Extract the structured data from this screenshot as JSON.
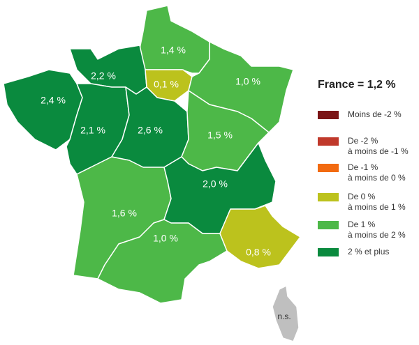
{
  "map": {
    "regions": [
      {
        "label": "1,4 %",
        "color": "#4db848"
      },
      {
        "label": "2,2 %",
        "color": "#0a8a3e"
      },
      {
        "label": "0,1 %",
        "color": "#bcc21d"
      },
      {
        "label": "1,0 %",
        "color": "#4db848"
      },
      {
        "label": "2,4 %",
        "color": "#0a8a3e"
      },
      {
        "label": "2,1 %",
        "color": "#0a8a3e"
      },
      {
        "label": "2,6 %",
        "color": "#0a8a3e"
      },
      {
        "label": "1,5 %",
        "color": "#4db848"
      },
      {
        "label": "1,6 %",
        "color": "#4db848"
      },
      {
        "label": "2,0 %",
        "color": "#0a8a3e"
      },
      {
        "label": "1,0 %",
        "color": "#4db848"
      },
      {
        "label": "0,8 %",
        "color": "#bcc21d"
      },
      {
        "label": "n.s.",
        "color": "#bfbfbf"
      }
    ],
    "legend": {
      "title": "France = 1,2 %",
      "items": [
        {
          "lines": [
            "Moins de -2 %"
          ],
          "color": "#7b1416"
        },
        {
          "lines": [
            "De -2 %",
            "à moins de -1 %"
          ],
          "color": "#c0392b"
        },
        {
          "lines": [
            "De -1 %",
            "à moins de 0 %"
          ],
          "color": "#f26a10"
        },
        {
          "lines": [
            "De 0 %",
            "à moins de 1 %"
          ],
          "color": "#bcc21d"
        },
        {
          "lines": [
            "De 1 %",
            "à moins de 2 %"
          ],
          "color": "#4db848"
        },
        {
          "lines": [
            "2 % et plus"
          ],
          "color": "#0a8a3e"
        }
      ]
    }
  }
}
